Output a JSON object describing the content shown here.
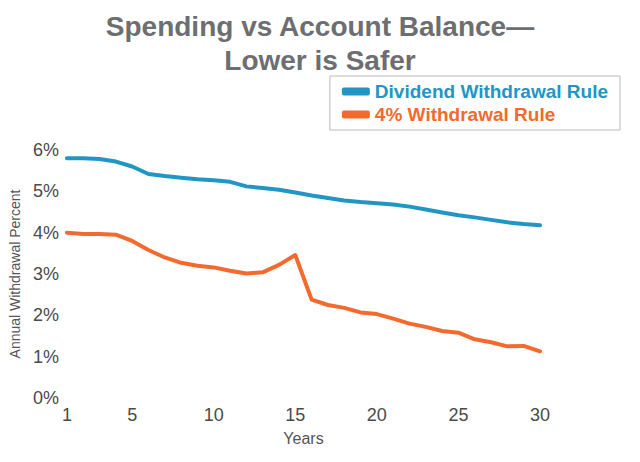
{
  "chart_data": {
    "type": "line",
    "title": "Spending vs Account Balance—",
    "subtitle": "Lower is Safer",
    "x_label": "Years",
    "y_label": "Annual Withdrawal Percent",
    "x": [
      1,
      2,
      3,
      4,
      5,
      6,
      7,
      8,
      9,
      10,
      11,
      12,
      13,
      14,
      15,
      16,
      17,
      18,
      19,
      20,
      21,
      22,
      23,
      24,
      25,
      26,
      27,
      28,
      29,
      30
    ],
    "series": [
      {
        "name": "Dividend Withdrawal Rule",
        "color": "#2196c4",
        "values": [
          5.8,
          5.8,
          5.78,
          5.72,
          5.6,
          5.42,
          5.37,
          5.33,
          5.29,
          5.27,
          5.23,
          5.12,
          5.08,
          5.04,
          4.97,
          4.9,
          4.84,
          4.78,
          4.74,
          4.71,
          4.68,
          4.63,
          4.56,
          4.49,
          4.42,
          4.37,
          4.31,
          4.25,
          4.21,
          4.18
        ]
      },
      {
        "name": "4% Withdrawal Rule",
        "color": "#f26a2e",
        "values": [
          4.0,
          3.97,
          3.97,
          3.95,
          3.8,
          3.58,
          3.4,
          3.27,
          3.2,
          3.16,
          3.08,
          3.01,
          3.04,
          3.22,
          3.46,
          2.38,
          2.25,
          2.18,
          2.07,
          2.03,
          1.92,
          1.8,
          1.72,
          1.62,
          1.58,
          1.42,
          1.35,
          1.25,
          1.26,
          1.13
        ]
      }
    ],
    "xlim": [
      1,
      30
    ],
    "xticks": [
      1,
      5,
      10,
      15,
      20,
      25,
      30
    ],
    "ylim": [
      0,
      6
    ],
    "yticks": [
      {
        "value": 0,
        "label": "0%"
      },
      {
        "value": 1,
        "label": "1%"
      },
      {
        "value": 2,
        "label": "2%"
      },
      {
        "value": 3,
        "label": "3%"
      },
      {
        "value": 4,
        "label": "4%"
      },
      {
        "value": 5,
        "label": "5%"
      },
      {
        "value": 6,
        "label": "6%"
      }
    ],
    "grid": false,
    "legend": "upper right"
  }
}
